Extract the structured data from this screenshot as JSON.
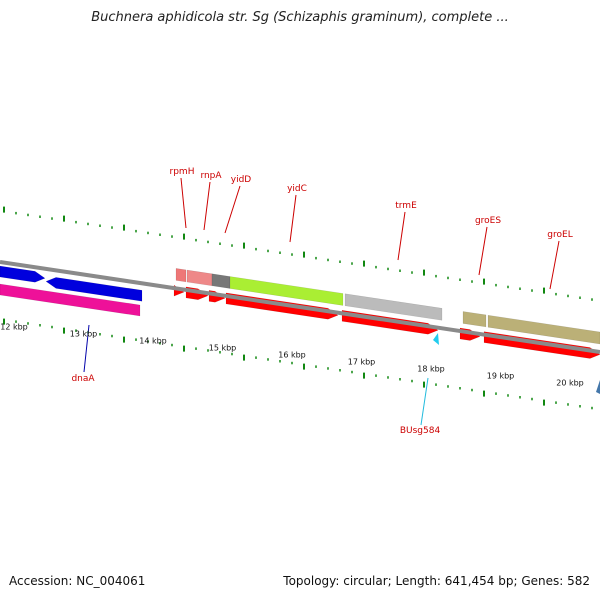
{
  "title": "Buchnera aphidicola str. Sg (Schizaphis graminum), complete ...",
  "footer": {
    "accession": "Accession: NC_004061",
    "summary": "Topology: circular; Length: 641,454 bp; Genes: 582"
  },
  "kbp_labels": [
    {
      "text": "12 kbp",
      "pos": 12
    },
    {
      "text": "13 kbp",
      "pos": 13
    },
    {
      "text": "14 kbp",
      "pos": 14
    },
    {
      "text": "15 kbp",
      "pos": 15
    },
    {
      "text": "16 kbp",
      "pos": 16
    },
    {
      "text": "17 kbp",
      "pos": 17
    },
    {
      "text": "18 kbp",
      "pos": 18
    },
    {
      "text": "19 kbp",
      "pos": 19
    },
    {
      "text": "20 kbp",
      "pos": 20
    }
  ],
  "gene_labels": [
    {
      "text": "rpmH",
      "color": "#cc0000"
    },
    {
      "text": "rnpA",
      "color": "#cc0000"
    },
    {
      "text": "yidD",
      "color": "#cc0000"
    },
    {
      "text": "yidC",
      "color": "#cc0000"
    },
    {
      "text": "trmE",
      "color": "#cc0000"
    },
    {
      "text": "groES",
      "color": "#cc0000"
    },
    {
      "text": "groEL",
      "color": "#cc0000"
    },
    {
      "text": "dnaA",
      "color": "#0000aa"
    },
    {
      "text": "BUsg584",
      "color": "#22bbdd"
    }
  ],
  "colors": {
    "backbone": "#888888",
    "cds": "#ff0000",
    "dnaA": "#0000dd",
    "magenta": "#ee1199",
    "yidC": "#aaee33",
    "trmE": "#bbbbbb",
    "groEL": "#bbb077",
    "ticks": "#118811"
  }
}
